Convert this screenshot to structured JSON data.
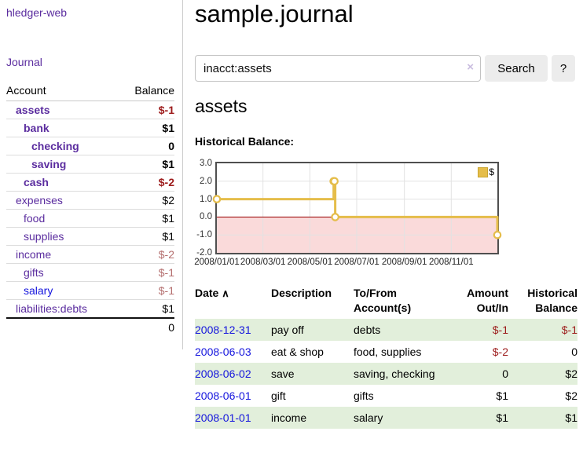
{
  "colors": {
    "purple": "#5b2d9f",
    "blue": "#1414dd",
    "neg_strong": "#9c1a1a",
    "neg_pale": "#b46e6e",
    "row_green": "#e2efdb",
    "gold": "#e5bd4a",
    "gold_dark": "#c9a42f",
    "grid": "#e2e2e2",
    "neg_region": "#fadada",
    "zero_line": "#990000"
  },
  "sidebar": {
    "brand": "hledger-web",
    "journal_link": "Journal",
    "accounts": {
      "header_account": "Account",
      "header_balance": "Balance",
      "rows": [
        {
          "name": "assets",
          "balance": "$-1",
          "level": 1,
          "bold": true,
          "name_color": "purple",
          "balance_color": "neg_strong"
        },
        {
          "name": "bank",
          "balance": "$1",
          "level": 2,
          "bold": true,
          "name_color": "purple",
          "balance_color": "black"
        },
        {
          "name": "checking",
          "balance": "0",
          "level": 3,
          "bold": true,
          "name_color": "purple",
          "balance_color": "black"
        },
        {
          "name": "saving",
          "balance": "$1",
          "level": 3,
          "bold": true,
          "name_color": "purple",
          "balance_color": "black"
        },
        {
          "name": "cash",
          "balance": "$-2",
          "level": 2,
          "bold": true,
          "name_color": "purple",
          "balance_color": "neg_strong"
        },
        {
          "name": "expenses",
          "balance": "$2",
          "level": 1,
          "bold": false,
          "name_color": "purple",
          "balance_color": "black"
        },
        {
          "name": "food",
          "balance": "$1",
          "level": 2,
          "bold": false,
          "name_color": "purple",
          "balance_color": "black"
        },
        {
          "name": "supplies",
          "balance": "$1",
          "level": 2,
          "bold": false,
          "name_color": "purple",
          "balance_color": "black"
        },
        {
          "name": "income",
          "balance": "$-2",
          "level": 1,
          "bold": false,
          "name_color": "purple",
          "balance_color": "neg_pale"
        },
        {
          "name": "gifts",
          "balance": "$-1",
          "level": 2,
          "bold": false,
          "name_color": "purple",
          "balance_color": "neg_pale"
        },
        {
          "name": "salary",
          "balance": "$-1",
          "level": 2,
          "bold": false,
          "name_color": "blue",
          "balance_color": "neg_pale"
        },
        {
          "name": "liabilities:debts",
          "balance": "$1",
          "level": 1,
          "bold": false,
          "name_color": "purple",
          "balance_color": "black"
        }
      ],
      "total": "0"
    }
  },
  "main": {
    "title": "sample.journal",
    "search": {
      "value": "inacct:assets",
      "clear_icon": "×",
      "button_label": "Search",
      "help_label": "?"
    },
    "account_heading": "assets",
    "chart_label": "Historical Balance:",
    "register": {
      "headers": {
        "date": "Date",
        "sort_icon": "∧",
        "description": "Description",
        "tofrom": "To/From Account(s)",
        "amount": "Amount Out/In",
        "balance": "Historical Balance"
      },
      "rows": [
        {
          "date": "2008-12-31",
          "description": "pay off",
          "accounts": "debts",
          "amount": "$-1",
          "balance": "$-1",
          "amount_neg": true,
          "balance_neg": true,
          "green": true
        },
        {
          "date": "2008-06-03",
          "description": "eat & shop",
          "accounts": "food, supplies",
          "amount": "$-2",
          "balance": "0",
          "amount_neg": true,
          "balance_neg": false,
          "green": false
        },
        {
          "date": "2008-06-02",
          "description": "save",
          "accounts": "saving, checking",
          "amount": "0",
          "balance": "$2",
          "amount_neg": false,
          "balance_neg": false,
          "green": true
        },
        {
          "date": "2008-06-01",
          "description": "gift",
          "accounts": "gifts",
          "amount": "$1",
          "balance": "$2",
          "amount_neg": false,
          "balance_neg": false,
          "green": false
        },
        {
          "date": "2008-01-01",
          "description": "income",
          "accounts": "salary",
          "amount": "$1",
          "balance": "$1",
          "amount_neg": false,
          "balance_neg": false,
          "green": true
        }
      ]
    }
  },
  "chart_data": {
    "type": "line",
    "title": "Historical Balance:",
    "step": true,
    "series": [
      {
        "name": "$",
        "points": [
          [
            "2008-01-01",
            1
          ],
          [
            "2008-06-01",
            2
          ],
          [
            "2008-06-02",
            2
          ],
          [
            "2008-06-03",
            0
          ],
          [
            "2008-12-31",
            -1
          ]
        ]
      }
    ],
    "x_ticks": [
      "2008/01/01",
      "2008/03/01",
      "2008/05/01",
      "2008/07/01",
      "2008/09/01",
      "2008/11/01"
    ],
    "y_ticks": [
      "3.0",
      "2.0",
      "1.0",
      "0.0",
      "-1.0",
      "-2.0"
    ],
    "xlim": [
      "2008-01-01",
      "2008-12-31"
    ],
    "ylim": [
      -2,
      3
    ],
    "grid": true,
    "legend": "$",
    "legend_position": "top-right"
  }
}
